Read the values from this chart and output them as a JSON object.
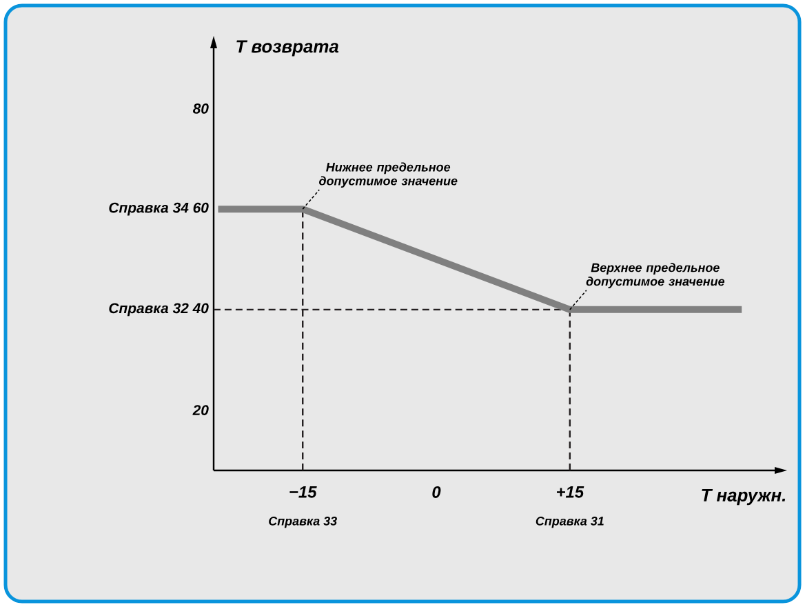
{
  "chart_data": {
    "type": "line",
    "xlabel": "Т наружн.",
    "ylabel": "Т возврата",
    "xlim": [
      -25,
      38
    ],
    "ylim": [
      8,
      92
    ],
    "xticks": [
      {
        "value": -15,
        "label": "−15"
      },
      0,
      {
        "value": 15,
        "label": "+15"
      }
    ],
    "yticks": [
      20,
      {
        "value": 40,
        "label": "Справка 32 40"
      },
      {
        "value": 60,
        "label": "Справка 34 60"
      },
      80
    ],
    "series": [
      {
        "color": "#808080",
        "x": [
          -24.5,
          -15,
          15,
          34.3
        ],
        "values": [
          60,
          60,
          40,
          40
        ]
      }
    ],
    "ref_lines": [
      {
        "axis": "x",
        "value": -15,
        "line_style": "dashed",
        "color": "#231f20"
      },
      {
        "axis": "x",
        "value": 15,
        "line_style": "dashed",
        "color": "#231f20"
      },
      {
        "axis": "y",
        "value": 40,
        "line_style": "dashed",
        "color": "#231f20"
      }
    ],
    "annotations": [
      {
        "text": "Нижнее предельное допустимое значение",
        "x": -15,
        "y": 60
      },
      {
        "text": "Верхнее предельное допустимое значение",
        "x": 15,
        "y": 40
      },
      "Справка 33",
      "Справка 31"
    ],
    "grid": false,
    "marker": "none",
    "line_style": "solid"
  }
}
